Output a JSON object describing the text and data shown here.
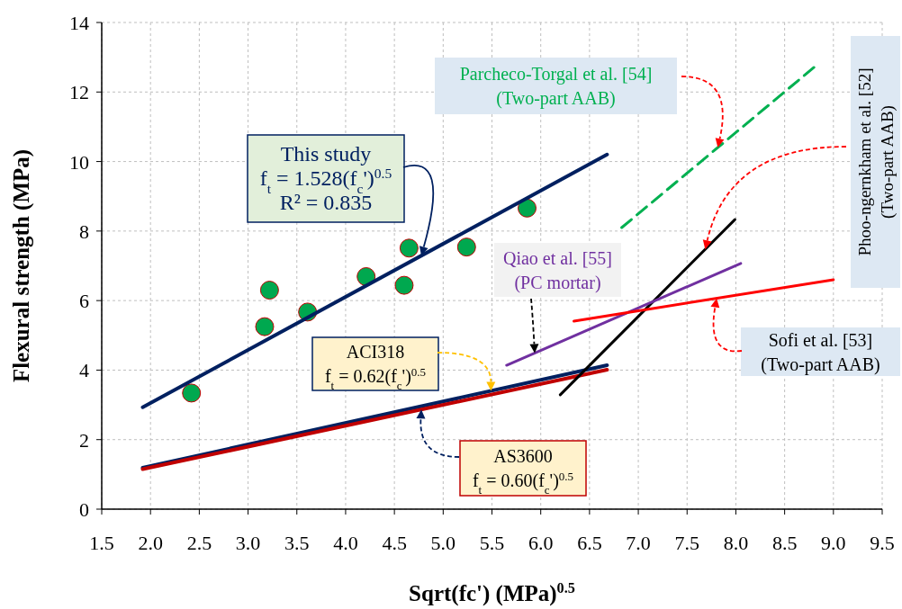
{
  "chart_data": {
    "type": "line",
    "xlabel": "Sqrt(fc') (MPa)$^{0.5}$",
    "ylabel": "Flexural strength (MPa)",
    "xlim": [
      1.5,
      9.5
    ],
    "ylim": [
      0,
      14
    ],
    "xticks": [
      1.5,
      {
        "value": 2,
        "label": "2.0"
      },
      2.5,
      {
        "value": 3,
        "label": "3.0"
      },
      3.5,
      {
        "value": 4,
        "label": "4.0"
      },
      4.5,
      {
        "value": 5,
        "label": "5.0"
      },
      5.5,
      {
        "value": 6,
        "label": "6.0"
      },
      6.5,
      {
        "value": 7,
        "label": "7.0"
      },
      7.5,
      {
        "value": 8,
        "label": "8.0"
      },
      8.5,
      {
        "value": 9,
        "label": "9.0"
      },
      9.5
    ],
    "yticks": [
      0,
      2,
      4,
      6,
      8,
      10,
      12,
      14
    ],
    "grid": true,
    "line_style": "solid",
    "series": [
      {
        "type": "scatter",
        "marker": "circle",
        "color": "#00a84f",
        "x": [
          2.42,
          3.17,
          3.22,
          3.61,
          4.21,
          4.6,
          4.65,
          5.24,
          5.86
        ],
        "values": [
          3.34,
          5.25,
          6.3,
          5.67,
          6.69,
          6.44,
          7.51,
          7.54,
          8.66
        ]
      },
      {
        "name": "This study\nf$_{t}$ = 1.528(f$_{c}$')$^{0.5}$\nR² = 0.835",
        "color": "#002060",
        "x": [
          1.92,
          6.68
        ],
        "values": [
          2.93,
          10.2
        ]
      },
      {
        "name": "ACI318\nf$_{t}$ = 0.62(f$_{c}$')$^{0.5}$",
        "color": "#002060",
        "x": [
          1.92,
          6.68
        ],
        "values": [
          1.19,
          4.14
        ]
      },
      {
        "name": "AS3600\nf$_{t}$ = 0.60(f$_{c}$')$^{0.5}$",
        "color": "#c00000",
        "x": [
          1.92,
          6.68
        ],
        "values": [
          1.15,
          4.01
        ]
      },
      {
        "name": "Parcheco-Torgal et al. [54]\n(Two-part AAB)",
        "color": "#00b050",
        "line_style": "dashed",
        "x": [
          6.83,
          8.84
        ],
        "values": [
          8.1,
          12.8
        ]
      },
      {
        "name": "Phoo-ngernkham et al. [52]\n(Two-part AAB)",
        "color": "#000000",
        "x": [
          6.2,
          7.99
        ],
        "values": [
          3.29,
          8.33
        ]
      },
      {
        "name": "Qiao et al. [55]\n(PC mortar)",
        "color": "#7030a0",
        "x": [
          5.65,
          8.05
        ],
        "values": [
          4.14,
          7.07
        ]
      },
      {
        "name": "Sofi et al. [53]\n(Two-part AAB)",
        "color": "#ff0000",
        "x": [
          6.34,
          9.0
        ],
        "values": [
          5.41,
          6.6
        ]
      }
    ]
  }
}
